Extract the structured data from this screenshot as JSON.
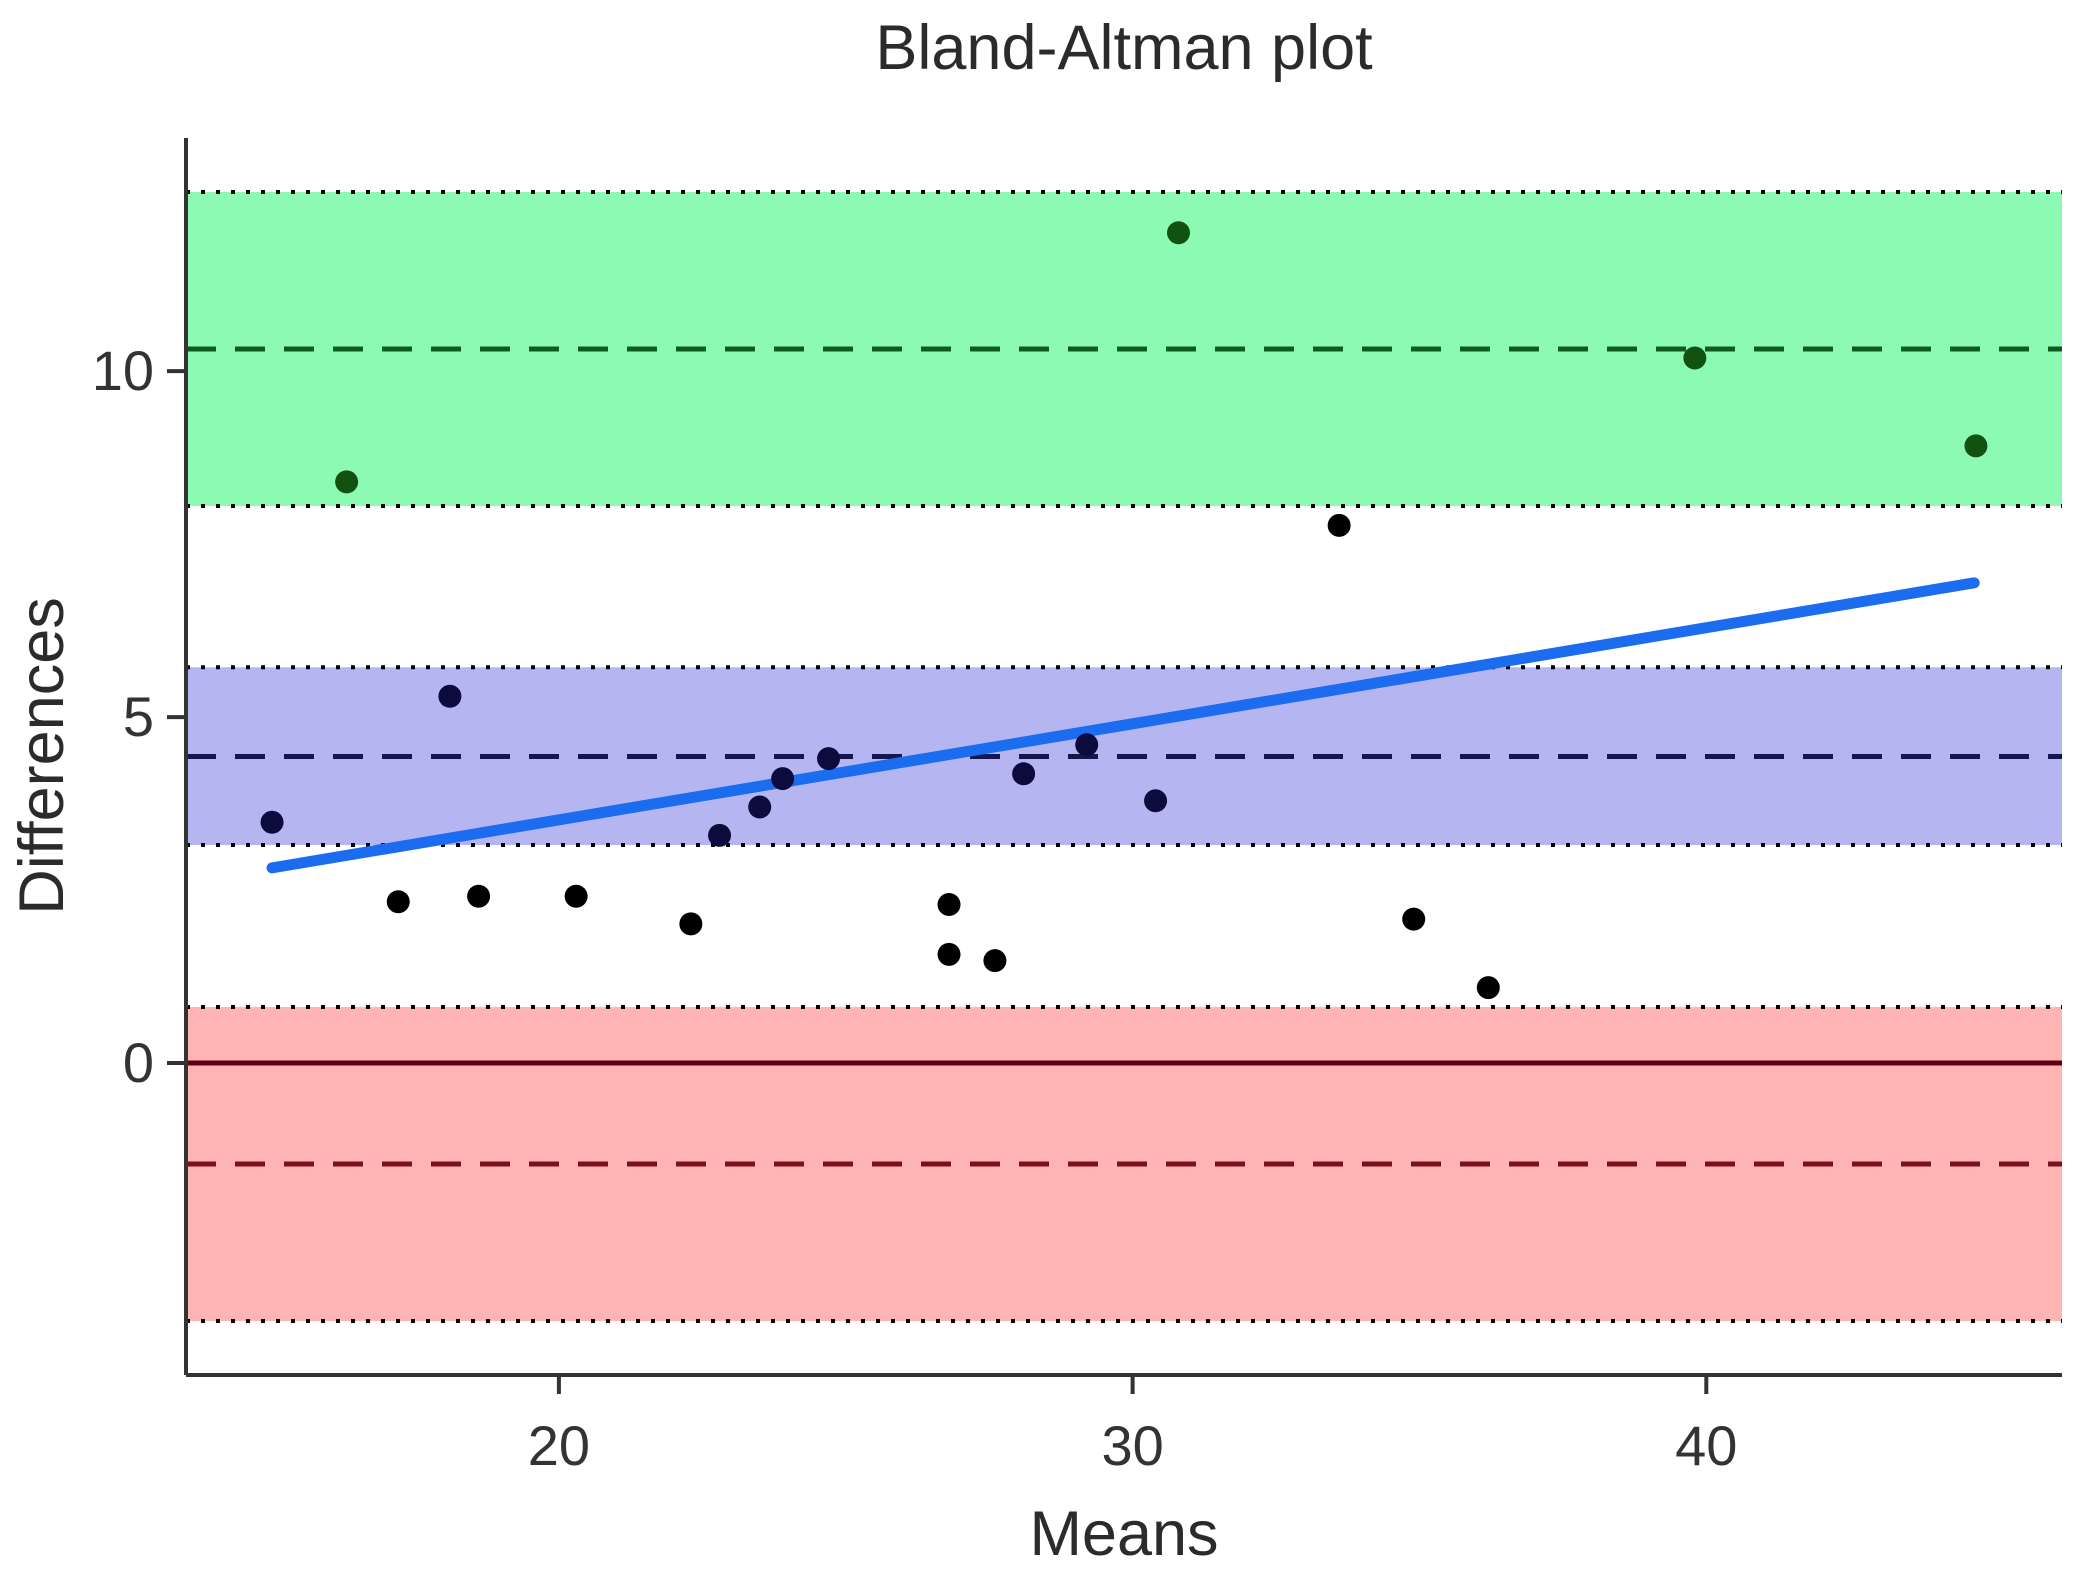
{
  "chart_data": {
    "type": "scatter",
    "title": "Bland-Altman plot",
    "xlabel": "Means",
    "ylabel": "Differences",
    "x_ticks": [
      "20",
      "30",
      "40"
    ],
    "x_tick_values": [
      20,
      30,
      40
    ],
    "y_ticks": [
      "0",
      "5",
      "10"
    ],
    "y_tick_values": [
      0,
      5,
      10
    ],
    "xlim": [
      13.5,
      46.2
    ],
    "ylim": [
      -4.51,
      13.37
    ],
    "grid": false,
    "legend": "none",
    "axis_color": "#333333",
    "edge_dotted_color": "#000000",
    "bands": [
      {
        "name": "upper-loa-ci",
        "from": 8.05,
        "to": 12.59,
        "center_dashed": 10.32,
        "fill": "#8cfab2",
        "dash_color": "#0e5a20"
      },
      {
        "name": "mean-diff-ci",
        "from": 3.15,
        "to": 5.72,
        "center_dashed": 4.43,
        "fill": "#b5b5f2",
        "dash_color": "#16164e"
      },
      {
        "name": "lower-loa-ci",
        "from": -3.73,
        "to": 0.81,
        "center_dashed": -1.46,
        "fill": "#ffb4b4",
        "dash_color": "#7a0f1d"
      }
    ],
    "zero_line": {
      "y": 0,
      "color": "#5c0011"
    },
    "trend_line": {
      "x1": 15.0,
      "y1": 2.82,
      "x2": 44.67,
      "y2": 6.94,
      "color": "#1c6cf0"
    },
    "point_colors": {
      "black": "#000000",
      "navy": "#0b0b3d",
      "green": "#115211"
    },
    "points": [
      {
        "x": 15.0,
        "y": 3.48,
        "color": "navy"
      },
      {
        "x": 16.3,
        "y": 8.4,
        "color": "green"
      },
      {
        "x": 17.2,
        "y": 2.33,
        "color": "black"
      },
      {
        "x": 18.1,
        "y": 5.3,
        "color": "navy"
      },
      {
        "x": 18.6,
        "y": 2.41,
        "color": "black"
      },
      {
        "x": 20.3,
        "y": 2.41,
        "color": "black"
      },
      {
        "x": 22.3,
        "y": 2.01,
        "color": "black"
      },
      {
        "x": 22.8,
        "y": 3.29,
        "color": "navy"
      },
      {
        "x": 23.5,
        "y": 3.7,
        "color": "navy"
      },
      {
        "x": 23.9,
        "y": 4.11,
        "color": "navy"
      },
      {
        "x": 24.7,
        "y": 4.4,
        "color": "navy"
      },
      {
        "x": 26.8,
        "y": 2.29,
        "color": "black"
      },
      {
        "x": 26.8,
        "y": 1.57,
        "color": "black"
      },
      {
        "x": 27.6,
        "y": 1.48,
        "color": "black"
      },
      {
        "x": 28.1,
        "y": 4.18,
        "color": "navy"
      },
      {
        "x": 29.2,
        "y": 4.6,
        "color": "navy"
      },
      {
        "x": 30.4,
        "y": 3.79,
        "color": "navy"
      },
      {
        "x": 30.8,
        "y": 12.0,
        "color": "green"
      },
      {
        "x": 33.6,
        "y": 7.77,
        "color": "black"
      },
      {
        "x": 34.9,
        "y": 2.08,
        "color": "black"
      },
      {
        "x": 36.2,
        "y": 1.09,
        "color": "black"
      },
      {
        "x": 39.8,
        "y": 10.19,
        "color": "green"
      },
      {
        "x": 44.7,
        "y": 8.92,
        "color": "green"
      }
    ]
  }
}
